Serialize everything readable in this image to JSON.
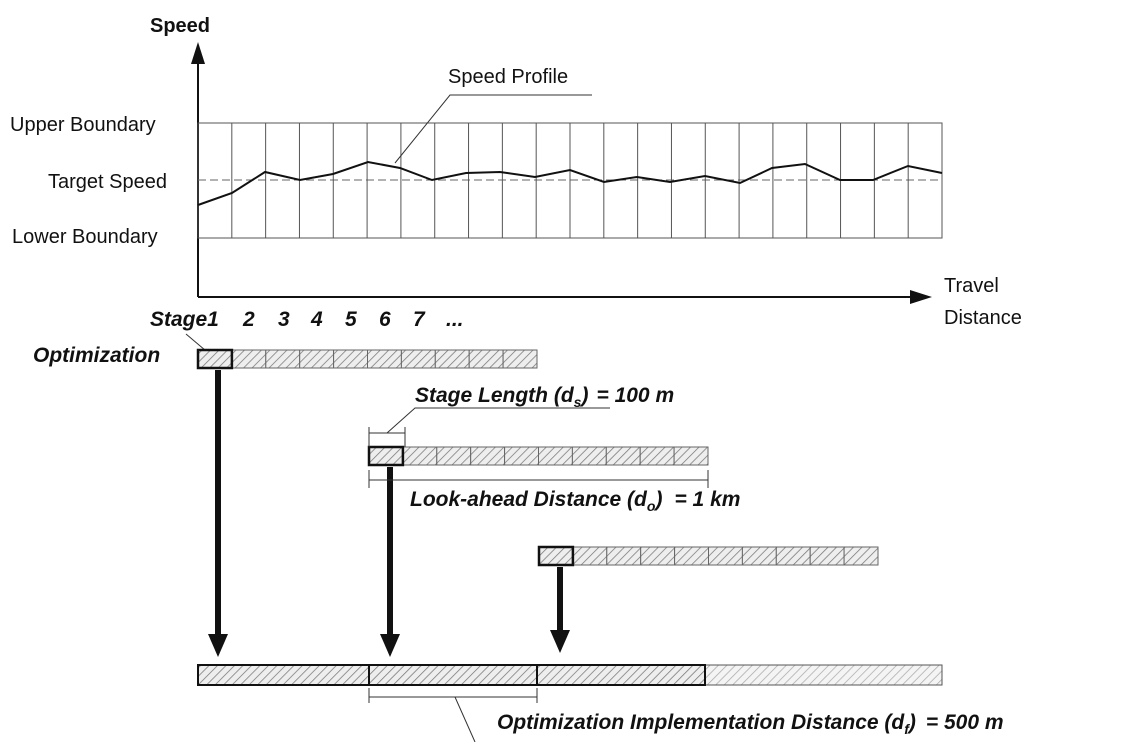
{
  "axis": {
    "y_label": "Speed",
    "x_label": [
      "Travel",
      "Distance"
    ]
  },
  "levels": [
    "Upper Boundary",
    "Target Speed",
    "Lower Boundary"
  ],
  "profile_label": "Speed Profile",
  "stages": [
    "Stage1",
    "2",
    "3",
    "4",
    "5",
    "6",
    "7",
    "..."
  ],
  "row_label": "Optimization",
  "annotations": {
    "stage_length": {
      "text": "Stage Length (d",
      "sub": "s",
      "rest": ")",
      "value": "= 100 m"
    },
    "look_ahead": {
      "text": "Look-ahead Distance (d",
      "sub": "o",
      "rest": ")",
      "value": "= 1 km"
    },
    "implementation": {
      "text": "Optimization Implementation Distance (d",
      "sub": "f",
      "rest": ")",
      "value": "= 500 m"
    }
  }
}
